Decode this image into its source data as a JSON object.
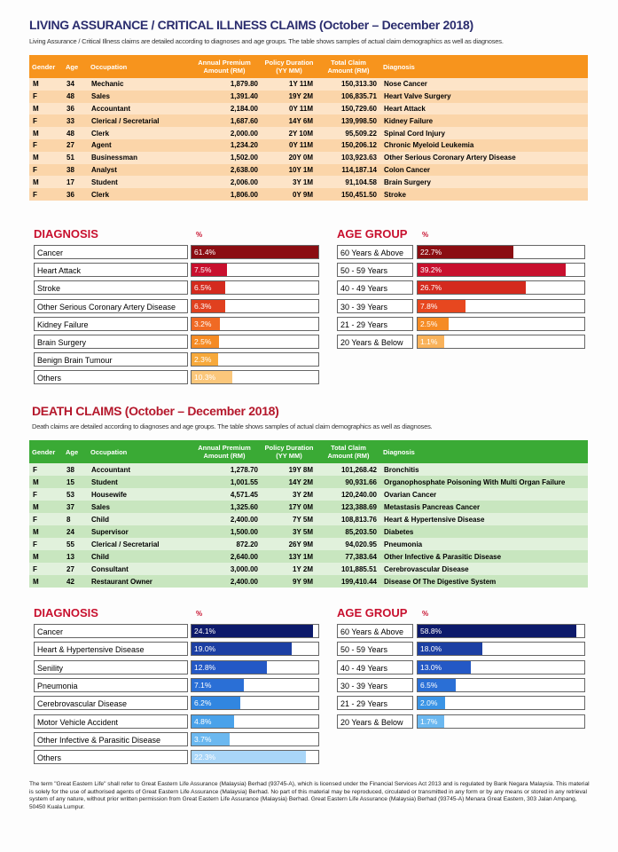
{
  "living": {
    "title": "LIVING ASSURANCE / CRITICAL ILLNESS CLAIMS (October – December 2018)",
    "subtitle": "Living Assurance / Critical Illness claims are detailed according to diagnoses and age groups. The table shows samples of actual claim demographics as well as diagnoses.",
    "table": {
      "headers": [
        "Gender",
        "Age",
        "Occupation",
        "Annual Premium Amount (RM)",
        "Policy Duration (YY MM)",
        "Total Claim Amount (RM)",
        "Diagnosis"
      ],
      "rows": [
        [
          "M",
          "34",
          "Mechanic",
          "1,879.80",
          "1Y 11M",
          "150,313.30",
          "Nose Cancer"
        ],
        [
          "F",
          "48",
          "Sales",
          "1,391.40",
          "19Y 2M",
          "106,835.71",
          "Heart Valve Surgery"
        ],
        [
          "M",
          "36",
          "Accountant",
          "2,184.00",
          "0Y 11M",
          "150,729.60",
          "Heart Attack"
        ],
        [
          "F",
          "33",
          "Clerical / Secretarial",
          "1,687.60",
          "14Y 6M",
          "139,998.50",
          "Kidney Failure"
        ],
        [
          "M",
          "48",
          "Clerk",
          "2,000.00",
          "2Y 10M",
          "95,509.22",
          "Spinal Cord Injury"
        ],
        [
          "F",
          "27",
          "Agent",
          "1,234.20",
          "0Y 11M",
          "150,206.12",
          "Chronic Myeloid Leukemia"
        ],
        [
          "M",
          "51",
          "Businessman",
          "1,502.00",
          "20Y 0M",
          "103,923.63",
          "Other Serious Coronary Artery Disease"
        ],
        [
          "F",
          "38",
          "Analyst",
          "2,638.00",
          "10Y 1M",
          "114,187.14",
          "Colon Cancer"
        ],
        [
          "M",
          "17",
          "Student",
          "2,006.00",
          "3Y 1M",
          "91,104.58",
          "Brain Surgery"
        ],
        [
          "F",
          "36",
          "Clerk",
          "1,806.00",
          "0Y 9M",
          "150,451.50",
          "Stroke"
        ]
      ]
    },
    "diagnosis": {
      "title": "DIAGNOSIS",
      "unit": "%",
      "items": [
        {
          "label": "Cancer",
          "value": 61.4,
          "value_label": "61.4%"
        },
        {
          "label": "Heart Attack",
          "value": 7.5,
          "value_label": "7.5%"
        },
        {
          "label": "Stroke",
          "value": 6.5,
          "value_label": "6.5%"
        },
        {
          "label": "Other Serious Coronary Artery Disease",
          "value": 6.3,
          "value_label": "6.3%"
        },
        {
          "label": "Kidney Failure",
          "value": 3.2,
          "value_label": "3.2%"
        },
        {
          "label": "Brain Surgery",
          "value": 2.5,
          "value_label": "2.5%"
        },
        {
          "label": "Benign Brain Tumour",
          "value": 2.3,
          "value_label": "2.3%"
        },
        {
          "label": "Others",
          "value": 10.3,
          "value_label": "10.3%"
        }
      ]
    },
    "age_group": {
      "title": "AGE GROUP",
      "unit": "%",
      "items": [
        {
          "label": "60 Years & Above",
          "value": 22.7,
          "value_label": "22.7%"
        },
        {
          "label": "50 - 59 Years",
          "value": 39.2,
          "value_label": "39.2%"
        },
        {
          "label": "40 - 49 Years",
          "value": 26.7,
          "value_label": "26.7%"
        },
        {
          "label": "30 - 39 Years",
          "value": 7.8,
          "value_label": "7.8%"
        },
        {
          "label": "21 - 29 Years",
          "value": 2.5,
          "value_label": "2.5%"
        },
        {
          "label": "20 Years & Below",
          "value": 1.1,
          "value_label": "1.1%"
        }
      ]
    }
  },
  "death": {
    "title": "DEATH CLAIMS (October – December 2018)",
    "subtitle": "Death claims are detailed according to diagnoses and age groups. The table shows samples of actual claim demographics as well as diagnoses.",
    "table": {
      "headers": [
        "Gender",
        "Age",
        "Occupation",
        "Annual Premium Amount (RM)",
        "Policy Duration (YY MM)",
        "Total Claim Amount (RM)",
        "Diagnosis"
      ],
      "rows": [
        [
          "F",
          "38",
          "Accountant",
          "1,278.70",
          "19Y 8M",
          "101,268.42",
          "Bronchitis"
        ],
        [
          "M",
          "15",
          "Student",
          "1,001.55",
          "14Y 2M",
          "90,931.66",
          "Organophosphate Poisoning With Multi Organ Failure"
        ],
        [
          "F",
          "53",
          "Housewife",
          "4,571.45",
          "3Y 2M",
          "120,240.00",
          "Ovarian Cancer"
        ],
        [
          "M",
          "37",
          "Sales",
          "1,325.60",
          "17Y 0M",
          "123,388.69",
          "Metastasis Pancreas Cancer"
        ],
        [
          "F",
          "8",
          "Child",
          "2,400.00",
          "7Y 5M",
          "108,813.76",
          "Heart & Hypertensive Disease"
        ],
        [
          "M",
          "24",
          "Supervisor",
          "1,500.00",
          "3Y 5M",
          "85,203.50",
          "Diabetes"
        ],
        [
          "F",
          "55",
          "Clerical / Secretarial",
          "872.20",
          "26Y 9M",
          "94,020.95",
          "Pneumonia"
        ],
        [
          "M",
          "13",
          "Child",
          "2,640.00",
          "13Y 1M",
          "77,383.64",
          "Other Infective & Parasitic Disease"
        ],
        [
          "F",
          "27",
          "Consultant",
          "3,000.00",
          "1Y 2M",
          "101,885.51",
          "Cerebrovascular Disease"
        ],
        [
          "M",
          "42",
          "Restaurant Owner",
          "2,400.00",
          "9Y 9M",
          "199,410.44",
          "Disease Of The Digestive System"
        ]
      ]
    },
    "diagnosis": {
      "title": "DIAGNOSIS",
      "unit": "%",
      "items": [
        {
          "label": "Cancer",
          "value": 24.1,
          "value_label": "24.1%"
        },
        {
          "label": "Heart & Hypertensive Disease",
          "value": 19.0,
          "value_label": "19.0%"
        },
        {
          "label": "Senility",
          "value": 12.8,
          "value_label": "12.8%"
        },
        {
          "label": "Pneumonia",
          "value": 7.1,
          "value_label": "7.1%"
        },
        {
          "label": "Cerebrovascular Disease",
          "value": 6.2,
          "value_label": "6.2%"
        },
        {
          "label": "Motor Vehicle Accident",
          "value": 4.8,
          "value_label": "4.8%"
        },
        {
          "label": "Other Infective & Parasitic Disease",
          "value": 3.7,
          "value_label": "3.7%"
        },
        {
          "label": "Others",
          "value": 22.3,
          "value_label": "22.3%"
        }
      ]
    },
    "age_group": {
      "title": "AGE GROUP",
      "unit": "%",
      "items": [
        {
          "label": "60 Years & Above",
          "value": 58.8,
          "value_label": "58.8%"
        },
        {
          "label": "50 - 59 Years",
          "value": 18.0,
          "value_label": "18.0%"
        },
        {
          "label": "40 - 49 Years",
          "value": 13.0,
          "value_label": "13.0%"
        },
        {
          "label": "30 - 39 Years",
          "value": 6.5,
          "value_label": "6.5%"
        },
        {
          "label": "21 - 29 Years",
          "value": 2.0,
          "value_label": "2.0%"
        },
        {
          "label": "20 Years & Below",
          "value": 1.7,
          "value_label": "1.7%"
        }
      ]
    }
  },
  "footer": "The term \"Great Eastern Life\" shall refer to Great Eastern Life Assurance (Malaysia) Berhad (93745-A), which is licensed under the Financial Services Act 2013 and is regulated by Bank Negara Malaysia. This material is solely for the use of authorised agents of Great Eastern Life Assurance (Malaysia) Berhad. No part of this material may be reproduced, circulated or transmitted in any form or by any means or stored in any retrieval system of any nature, without prior written permission from Great Eastern Life Assurance (Malaysia) Berhad. Great Eastern Life Assurance (Malaysia) Berhad (93745-A) Menara Great Eastern, 303 Jalan Ampang, 50450 Kuala Lumpur."
}
